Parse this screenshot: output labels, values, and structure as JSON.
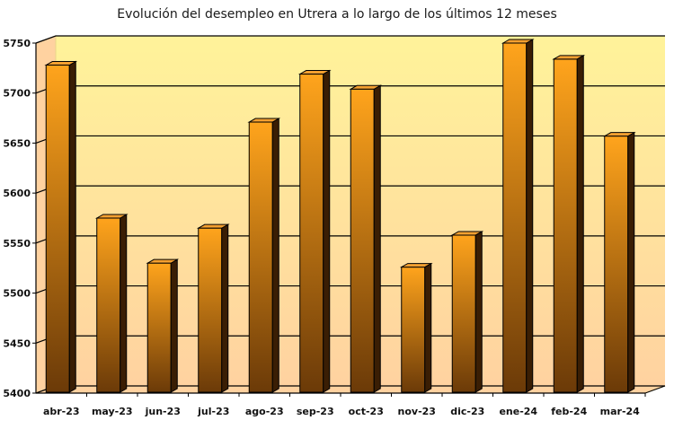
{
  "chart_data": {
    "type": "bar",
    "title": "Evolución del desempleo en Utrera a lo largo de los últimos 12 meses",
    "xlabel": "",
    "ylabel": "",
    "categories": [
      "abr-23",
      "may-23",
      "jun-23",
      "jul-23",
      "ago-23",
      "sep-23",
      "oct-23",
      "nov-23",
      "dic-23",
      "ene-24",
      "feb-24",
      "mar-24"
    ],
    "values": [
      5728,
      5575,
      5530,
      5565,
      5671,
      5719,
      5704,
      5526,
      5558,
      5750,
      5734,
      5657
    ],
    "ylim": [
      5400,
      5750
    ],
    "yticks": [
      5400,
      5450,
      5500,
      5550,
      5600,
      5650,
      5700,
      5750
    ],
    "grid": true,
    "legend": "none",
    "style": "3d-bar",
    "colors": {
      "bar_light": "#FFA41C",
      "bar_dark": "#6B3A08",
      "bar_side": "#3A1E04",
      "bar_top": "#F5A030",
      "plot_bg_top": "#FFF39A",
      "plot_bg_bottom": "#FFD2A0",
      "wall_edge": "#E8D58A"
    }
  }
}
